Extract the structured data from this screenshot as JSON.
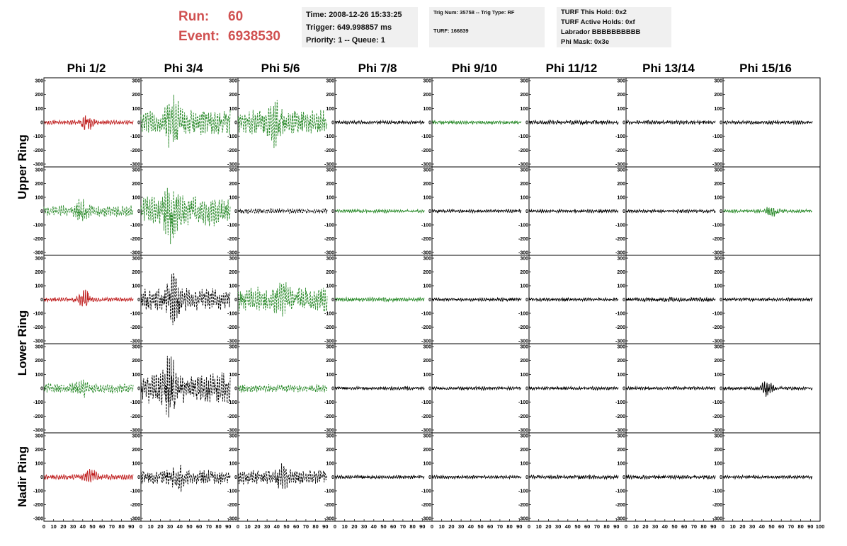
{
  "header": {
    "run_label": "Run:",
    "run_value": "60",
    "event_label": "Event:",
    "event_value": "6938530"
  },
  "info_time": {
    "line1": "Time: 2008-12-26 15:33:25",
    "line2": "Trigger: 649.998857 ms",
    "line3": "Priority: 1 -- Queue: 1"
  },
  "info_trig": {
    "line1": "Trig Num: 35758 -- Trig Type: RF",
    "line2": "TURF: 166839"
  },
  "info_turf": {
    "line1": "TURF This Hold: 0x2",
    "line2": "TURF Active Holds: 0xf",
    "line3": "Labrador BBBBBBBBBB",
    "line4": "Phi Mask: 0x3e"
  },
  "columns": [
    "Phi 1/2",
    "Phi 3/4",
    "Phi 5/6",
    "Phi 7/8",
    "Phi 9/10",
    "Phi 11/12",
    "Phi 13/14",
    "Phi 15/16"
  ],
  "row_groups": [
    "Upper Ring",
    "Lower Ring",
    "Nadir Ring"
  ],
  "colors": {
    "red": "#c02020",
    "green": "#2a8a2a",
    "black": "#000000"
  },
  "chart_data": {
    "type": "line",
    "xlim": [
      0,
      100
    ],
    "ylim": [
      -300,
      300
    ],
    "xticks": [
      "0",
      "10",
      "20",
      "30",
      "40",
      "50",
      "60",
      "70",
      "80",
      "90",
      "100"
    ],
    "yticks": [
      "300",
      "200",
      "100",
      "0",
      "-100",
      "-200",
      "-300"
    ],
    "grid": false,
    "panels": [
      {
        "row": 0,
        "col": 0,
        "color": "red",
        "style": "solid",
        "amp": 15,
        "burst": {
          "center": 45,
          "amp": 50
        }
      },
      {
        "row": 0,
        "col": 1,
        "color": "green",
        "style": "dashed",
        "amp": 95,
        "burst": {
          "center": 33,
          "amp": 160
        }
      },
      {
        "row": 0,
        "col": 2,
        "color": "green",
        "style": "dashed",
        "amp": 90,
        "burst": {
          "center": 38,
          "amp": 90
        }
      },
      {
        "row": 0,
        "col": 3,
        "color": "black",
        "style": "solid",
        "amp": 12
      },
      {
        "row": 0,
        "col": 4,
        "color": "green",
        "style": "solid",
        "amp": 12
      },
      {
        "row": 0,
        "col": 5,
        "color": "black",
        "style": "solid",
        "amp": 15
      },
      {
        "row": 0,
        "col": 6,
        "color": "black",
        "style": "solid",
        "amp": 14
      },
      {
        "row": 0,
        "col": 7,
        "color": "black",
        "style": "solid",
        "amp": 14
      },
      {
        "row": 1,
        "col": 0,
        "color": "green",
        "style": "dashed",
        "amp": 40,
        "burst": {
          "center": 38,
          "amp": 60
        }
      },
      {
        "row": 1,
        "col": 1,
        "color": "green",
        "style": "dashed",
        "amp": 110,
        "burst": {
          "center": 30,
          "amp": 140
        }
      },
      {
        "row": 1,
        "col": 2,
        "color": "black",
        "style": "dashed",
        "amp": 20
      },
      {
        "row": 1,
        "col": 3,
        "color": "green",
        "style": "solid",
        "amp": 12
      },
      {
        "row": 1,
        "col": 4,
        "color": "black",
        "style": "solid",
        "amp": 12
      },
      {
        "row": 1,
        "col": 5,
        "color": "black",
        "style": "solid",
        "amp": 12
      },
      {
        "row": 1,
        "col": 6,
        "color": "black",
        "style": "solid",
        "amp": 12
      },
      {
        "row": 1,
        "col": 7,
        "color": "green",
        "style": "solid",
        "amp": 12,
        "burst": {
          "center": 50,
          "amp": 35
        }
      },
      {
        "row": 2,
        "col": 0,
        "color": "red",
        "style": "solid",
        "amp": 15,
        "burst": {
          "center": 42,
          "amp": 60
        }
      },
      {
        "row": 2,
        "col": 1,
        "color": "black",
        "style": "dashed",
        "amp": 80,
        "burst": {
          "center": 33,
          "amp": 150
        }
      },
      {
        "row": 2,
        "col": 2,
        "color": "green",
        "style": "dashed",
        "amp": 90,
        "burst": {
          "center": 45,
          "amp": 80
        }
      },
      {
        "row": 2,
        "col": 3,
        "color": "green",
        "style": "solid",
        "amp": 15
      },
      {
        "row": 2,
        "col": 4,
        "color": "black",
        "style": "solid",
        "amp": 12
      },
      {
        "row": 2,
        "col": 5,
        "color": "black",
        "style": "solid",
        "amp": 12
      },
      {
        "row": 2,
        "col": 6,
        "color": "black",
        "style": "solid",
        "amp": 15
      },
      {
        "row": 2,
        "col": 7,
        "color": "black",
        "style": "solid",
        "amp": 12
      },
      {
        "row": 3,
        "col": 0,
        "color": "green",
        "style": "dashed",
        "amp": 35,
        "burst": {
          "center": 38,
          "amp": 50
        }
      },
      {
        "row": 3,
        "col": 1,
        "color": "black",
        "style": "dashed",
        "amp": 110,
        "burst": {
          "center": 30,
          "amp": 150
        }
      },
      {
        "row": 3,
        "col": 2,
        "color": "green",
        "style": "dashed",
        "amp": 30
      },
      {
        "row": 3,
        "col": 3,
        "color": "black",
        "style": "solid",
        "amp": 12
      },
      {
        "row": 3,
        "col": 4,
        "color": "black",
        "style": "solid",
        "amp": 12
      },
      {
        "row": 3,
        "col": 5,
        "color": "black",
        "style": "solid",
        "amp": 12
      },
      {
        "row": 3,
        "col": 6,
        "color": "black",
        "style": "solid",
        "amp": 12
      },
      {
        "row": 3,
        "col": 7,
        "color": "black",
        "style": "solid",
        "amp": 12,
        "burst": {
          "center": 45,
          "amp": 50
        }
      },
      {
        "row": 4,
        "col": 0,
        "color": "red",
        "style": "solid",
        "amp": 20,
        "burst": {
          "center": 48,
          "amp": 45
        }
      },
      {
        "row": 4,
        "col": 1,
        "color": "black",
        "style": "dashed",
        "amp": 50,
        "burst": {
          "center": 38,
          "amp": 90
        }
      },
      {
        "row": 4,
        "col": 2,
        "color": "black",
        "style": "dashed",
        "amp": 50,
        "burst": {
          "center": 45,
          "amp": 70
        }
      },
      {
        "row": 4,
        "col": 3,
        "color": "black",
        "style": "solid",
        "amp": 12
      },
      {
        "row": 4,
        "col": 4,
        "color": "black",
        "style": "solid",
        "amp": 12
      },
      {
        "row": 4,
        "col": 5,
        "color": "black",
        "style": "solid",
        "amp": 14
      },
      {
        "row": 4,
        "col": 6,
        "color": "black",
        "style": "solid",
        "amp": 14
      },
      {
        "row": 4,
        "col": 7,
        "color": "black",
        "style": "solid",
        "amp": 12
      }
    ]
  }
}
